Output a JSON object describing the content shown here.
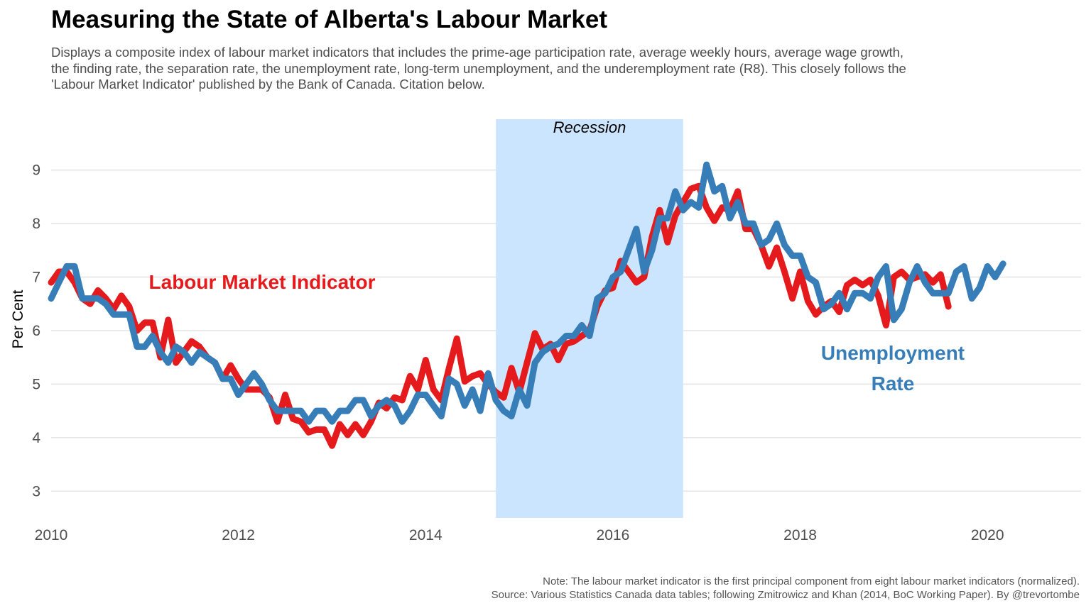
{
  "title": "Measuring the State of Alberta's Labour Market",
  "subtitle": "Displays a composite index of labour market indicators that includes the prime-age participation rate, average weekly hours, average wage growth, the finding rate, the separation rate, the unemployment rate, long-term unemployment, and the underemployment rate (R8). This closely follows the 'Labour Market Indicator' published by the Bank of Canada. Citation below.",
  "caption": {
    "line1": "Note: The labour market indicator is the first principal component from eight labour market indicators (normalized).",
    "line2": "Source: Various Statistics Canada data tables; following Zmitrowicz and Khan (2014, BoC Working Paper). By @trevortombe"
  },
  "colors": {
    "lmi": "#e41a1c",
    "unemployment": "#377eb8",
    "recession": "#cce5ff",
    "grid": "#e6e6e6"
  },
  "chart_data": {
    "type": "line",
    "ylabel": "Per Cent",
    "xlim": [
      2010,
      2021
    ],
    "ylim": [
      2.5,
      9.95
    ],
    "x_ticks": [
      "2010",
      "2012",
      "2014",
      "2016",
      "2018",
      "2020"
    ],
    "y_ticks": [
      "3",
      "4",
      "5",
      "6",
      "7",
      "8",
      "9"
    ],
    "grid": true,
    "recession": {
      "start": 2014.75,
      "end": 2016.75,
      "label": "Recession"
    },
    "annotations": [
      {
        "text": "Labour Market Indicator",
        "series": "lmi"
      },
      {
        "text": "Unemployment Rate",
        "lines": [
          "Unemployment",
          "Rate"
        ],
        "series": "unemployment"
      }
    ],
    "series": [
      {
        "key": "lmi",
        "points": [
          [
            2010.0,
            6.9
          ],
          [
            2010.083,
            7.1
          ],
          [
            2010.167,
            7.1
          ],
          [
            2010.25,
            6.9
          ],
          [
            2010.333,
            6.6
          ],
          [
            2010.417,
            6.5
          ],
          [
            2010.5,
            6.75
          ],
          [
            2010.583,
            6.6
          ],
          [
            2010.667,
            6.4
          ],
          [
            2010.75,
            6.65
          ],
          [
            2010.833,
            6.45
          ],
          [
            2010.917,
            6.0
          ],
          [
            2011.0,
            6.15
          ],
          [
            2011.083,
            6.15
          ],
          [
            2011.167,
            5.5
          ],
          [
            2011.25,
            6.2
          ],
          [
            2011.333,
            5.4
          ],
          [
            2011.417,
            5.6
          ],
          [
            2011.5,
            5.8
          ],
          [
            2011.583,
            5.7
          ],
          [
            2011.667,
            5.5
          ],
          [
            2011.75,
            5.4
          ],
          [
            2011.833,
            5.1
          ],
          [
            2011.917,
            5.35
          ],
          [
            2012.0,
            5.1
          ],
          [
            2012.083,
            4.9
          ],
          [
            2012.167,
            4.9
          ],
          [
            2012.25,
            4.9
          ],
          [
            2012.333,
            4.75
          ],
          [
            2012.417,
            4.3
          ],
          [
            2012.5,
            4.8
          ],
          [
            2012.583,
            4.35
          ],
          [
            2012.667,
            4.3
          ],
          [
            2012.75,
            4.1
          ],
          [
            2012.833,
            4.15
          ],
          [
            2012.917,
            4.15
          ],
          [
            2013.0,
            3.85
          ],
          [
            2013.083,
            4.25
          ],
          [
            2013.167,
            4.05
          ],
          [
            2013.25,
            4.25
          ],
          [
            2013.333,
            4.05
          ],
          [
            2013.417,
            4.3
          ],
          [
            2013.5,
            4.65
          ],
          [
            2013.583,
            4.55
          ],
          [
            2013.667,
            4.75
          ],
          [
            2013.75,
            4.7
          ],
          [
            2013.833,
            5.15
          ],
          [
            2013.917,
            4.9
          ],
          [
            2014.0,
            5.45
          ],
          [
            2014.083,
            4.9
          ],
          [
            2014.167,
            4.7
          ],
          [
            2014.25,
            5.3
          ],
          [
            2014.333,
            5.85
          ],
          [
            2014.417,
            5.05
          ],
          [
            2014.5,
            5.15
          ],
          [
            2014.583,
            5.2
          ],
          [
            2014.667,
            5.0
          ],
          [
            2014.75,
            4.85
          ],
          [
            2014.833,
            4.75
          ],
          [
            2014.917,
            5.3
          ],
          [
            2015.0,
            4.85
          ],
          [
            2015.083,
            5.4
          ],
          [
            2015.167,
            5.95
          ],
          [
            2015.25,
            5.65
          ],
          [
            2015.333,
            5.75
          ],
          [
            2015.417,
            5.45
          ],
          [
            2015.5,
            5.75
          ],
          [
            2015.583,
            5.8
          ],
          [
            2015.667,
            5.9
          ],
          [
            2015.75,
            6.0
          ],
          [
            2015.833,
            6.45
          ],
          [
            2015.917,
            6.75
          ],
          [
            2016.0,
            6.8
          ],
          [
            2016.083,
            7.3
          ],
          [
            2016.167,
            7.1
          ],
          [
            2016.25,
            6.9
          ],
          [
            2016.333,
            7.0
          ],
          [
            2016.417,
            7.75
          ],
          [
            2016.5,
            8.25
          ],
          [
            2016.583,
            7.65
          ],
          [
            2016.667,
            8.15
          ],
          [
            2016.75,
            8.4
          ],
          [
            2016.833,
            8.65
          ],
          [
            2016.917,
            8.7
          ],
          [
            2017.0,
            8.3
          ],
          [
            2017.083,
            8.05
          ],
          [
            2017.167,
            8.3
          ],
          [
            2017.25,
            8.25
          ],
          [
            2017.333,
            8.6
          ],
          [
            2017.417,
            7.9
          ],
          [
            2017.5,
            7.9
          ],
          [
            2017.583,
            7.6
          ],
          [
            2017.667,
            7.2
          ],
          [
            2017.75,
            7.55
          ],
          [
            2017.833,
            7.1
          ],
          [
            2017.917,
            6.6
          ],
          [
            2018.0,
            7.1
          ],
          [
            2018.083,
            6.55
          ],
          [
            2018.167,
            6.3
          ],
          [
            2018.25,
            6.45
          ],
          [
            2018.333,
            6.55
          ],
          [
            2018.417,
            6.35
          ],
          [
            2018.5,
            6.85
          ],
          [
            2018.583,
            6.95
          ],
          [
            2018.667,
            6.85
          ],
          [
            2018.75,
            6.95
          ],
          [
            2018.833,
            6.65
          ],
          [
            2018.917,
            6.1
          ],
          [
            2019.0,
            7.0
          ],
          [
            2019.083,
            7.1
          ],
          [
            2019.167,
            6.95
          ],
          [
            2019.25,
            7.0
          ],
          [
            2019.333,
            7.05
          ],
          [
            2019.417,
            6.9
          ],
          [
            2019.5,
            7.05
          ],
          [
            2019.583,
            6.45
          ]
        ]
      },
      {
        "key": "unemployment",
        "points": [
          [
            2010.0,
            6.6
          ],
          [
            2010.083,
            6.9
          ],
          [
            2010.167,
            7.2
          ],
          [
            2010.25,
            7.2
          ],
          [
            2010.333,
            6.6
          ],
          [
            2010.417,
            6.6
          ],
          [
            2010.5,
            6.6
          ],
          [
            2010.583,
            6.5
          ],
          [
            2010.667,
            6.3
          ],
          [
            2010.75,
            6.3
          ],
          [
            2010.833,
            6.3
          ],
          [
            2010.917,
            5.7
          ],
          [
            2011.0,
            5.7
          ],
          [
            2011.083,
            5.9
          ],
          [
            2011.167,
            5.6
          ],
          [
            2011.25,
            5.4
          ],
          [
            2011.333,
            5.7
          ],
          [
            2011.417,
            5.6
          ],
          [
            2011.5,
            5.4
          ],
          [
            2011.583,
            5.6
          ],
          [
            2011.667,
            5.5
          ],
          [
            2011.75,
            5.4
          ],
          [
            2011.833,
            5.1
          ],
          [
            2011.917,
            5.1
          ],
          [
            2012.0,
            4.8
          ],
          [
            2012.083,
            5.0
          ],
          [
            2012.167,
            5.2
          ],
          [
            2012.25,
            5.0
          ],
          [
            2012.333,
            4.7
          ],
          [
            2012.417,
            4.5
          ],
          [
            2012.5,
            4.5
          ],
          [
            2012.583,
            4.5
          ],
          [
            2012.667,
            4.5
          ],
          [
            2012.75,
            4.3
          ],
          [
            2012.833,
            4.5
          ],
          [
            2012.917,
            4.5
          ],
          [
            2013.0,
            4.3
          ],
          [
            2013.083,
            4.5
          ],
          [
            2013.167,
            4.5
          ],
          [
            2013.25,
            4.7
          ],
          [
            2013.333,
            4.7
          ],
          [
            2013.417,
            4.4
          ],
          [
            2013.5,
            4.6
          ],
          [
            2013.583,
            4.7
          ],
          [
            2013.667,
            4.6
          ],
          [
            2013.75,
            4.3
          ],
          [
            2013.833,
            4.5
          ],
          [
            2013.917,
            4.8
          ],
          [
            2014.0,
            4.8
          ],
          [
            2014.083,
            4.6
          ],
          [
            2014.167,
            4.4
          ],
          [
            2014.25,
            5.1
          ],
          [
            2014.333,
            5.0
          ],
          [
            2014.417,
            4.6
          ],
          [
            2014.5,
            4.9
          ],
          [
            2014.583,
            4.5
          ],
          [
            2014.667,
            5.2
          ],
          [
            2014.75,
            4.7
          ],
          [
            2014.833,
            4.5
          ],
          [
            2014.917,
            4.4
          ],
          [
            2015.0,
            4.9
          ],
          [
            2015.083,
            4.6
          ],
          [
            2015.167,
            5.4
          ],
          [
            2015.25,
            5.6
          ],
          [
            2015.333,
            5.7
          ],
          [
            2015.417,
            5.75
          ],
          [
            2015.5,
            5.9
          ],
          [
            2015.583,
            5.9
          ],
          [
            2015.667,
            6.1
          ],
          [
            2015.75,
            5.9
          ],
          [
            2015.833,
            6.6
          ],
          [
            2015.917,
            6.7
          ],
          [
            2016.0,
            7.0
          ],
          [
            2016.083,
            7.1
          ],
          [
            2016.167,
            7.5
          ],
          [
            2016.25,
            7.9
          ],
          [
            2016.333,
            7.1
          ],
          [
            2016.417,
            7.5
          ],
          [
            2016.5,
            8.1
          ],
          [
            2016.583,
            8.1
          ],
          [
            2016.667,
            8.6
          ],
          [
            2016.75,
            8.25
          ],
          [
            2016.833,
            8.4
          ],
          [
            2016.917,
            8.3
          ],
          [
            2017.0,
            9.1
          ],
          [
            2017.083,
            8.6
          ],
          [
            2017.167,
            8.7
          ],
          [
            2017.25,
            8.1
          ],
          [
            2017.333,
            8.4
          ],
          [
            2017.417,
            8.0
          ],
          [
            2017.5,
            8.0
          ],
          [
            2017.583,
            7.6
          ],
          [
            2017.667,
            7.7
          ],
          [
            2017.75,
            8.0
          ],
          [
            2017.833,
            7.6
          ],
          [
            2017.917,
            7.4
          ],
          [
            2018.0,
            7.4
          ],
          [
            2018.083,
            7.0
          ],
          [
            2018.167,
            6.9
          ],
          [
            2018.25,
            6.4
          ],
          [
            2018.333,
            6.5
          ],
          [
            2018.417,
            6.7
          ],
          [
            2018.5,
            6.4
          ],
          [
            2018.583,
            6.7
          ],
          [
            2018.667,
            6.7
          ],
          [
            2018.75,
            6.6
          ],
          [
            2018.833,
            7.0
          ],
          [
            2018.917,
            7.2
          ],
          [
            2019.0,
            6.2
          ],
          [
            2019.083,
            6.4
          ],
          [
            2019.167,
            6.9
          ],
          [
            2019.25,
            7.2
          ],
          [
            2019.333,
            6.9
          ],
          [
            2019.417,
            6.7
          ],
          [
            2019.5,
            6.7
          ],
          [
            2019.583,
            6.7
          ],
          [
            2019.667,
            7.1
          ],
          [
            2019.75,
            7.2
          ],
          [
            2019.833,
            6.6
          ],
          [
            2019.917,
            6.8
          ],
          [
            2020.0,
            7.2
          ],
          [
            2020.083,
            7.0
          ],
          [
            2020.167,
            7.25
          ]
        ]
      }
    ]
  }
}
